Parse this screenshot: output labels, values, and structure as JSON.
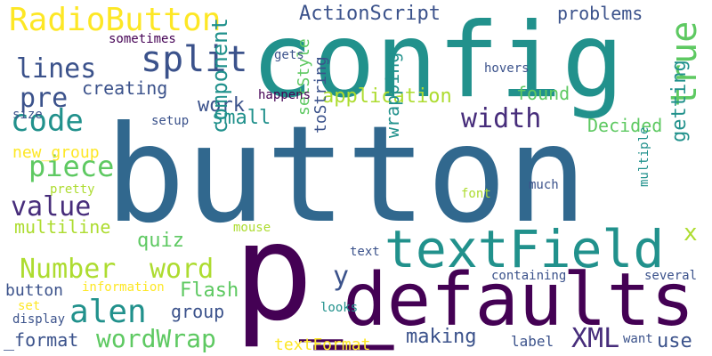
{
  "background": "#ffffff",
  "palette": {
    "dark_purple": "#440154",
    "indigo": "#472d7b",
    "blue": "#3b528b",
    "steel": "#31688e",
    "teal": "#21918c",
    "sea": "#1fa187",
    "green": "#5ec962",
    "lime": "#addc30",
    "yellow": "#fde725"
  },
  "words": [
    {
      "text": "button",
      "color": "#31688e"
    },
    {
      "text": "config",
      "color": "#21918c"
    },
    {
      "text": "_defaults",
      "color": "#440154"
    },
    {
      "text": "p_",
      "color": "#440154"
    },
    {
      "text": "textField",
      "color": "#21918c"
    },
    {
      "text": "RadioButton",
      "color": "#fde725"
    },
    {
      "text": "split",
      "color": "#3b528b"
    },
    {
      "text": "true",
      "color": "#5ec962"
    },
    {
      "text": "code",
      "color": "#21918c"
    },
    {
      "text": "piece",
      "color": "#5ec962"
    },
    {
      "text": "value",
      "color": "#472d7b"
    },
    {
      "text": "width",
      "color": "#472d7b"
    },
    {
      "text": "lines",
      "color": "#3b528b"
    },
    {
      "text": "pre",
      "color": "#3b528b"
    },
    {
      "text": "application",
      "color": "#addc30"
    },
    {
      "text": "ActionScript",
      "color": "#3b528b"
    },
    {
      "text": "problems",
      "color": "#3b528b"
    },
    {
      "text": "work",
      "color": "#3b528b"
    },
    {
      "text": "small",
      "color": "#21918c"
    },
    {
      "text": "found",
      "color": "#5ec962"
    },
    {
      "text": "Decided",
      "color": "#5ec962"
    },
    {
      "text": "getting",
      "color": "#21918c"
    },
    {
      "text": "component",
      "color": "#21918c"
    },
    {
      "text": "wrapping",
      "color": "#21918c"
    },
    {
      "text": "setStyle",
      "color": "#5ec962"
    },
    {
      "text": "toString",
      "color": "#3b528b"
    },
    {
      "text": "Number",
      "color": "#addc30"
    },
    {
      "text": "word",
      "color": "#addc30"
    },
    {
      "text": "alen",
      "color": "#21918c"
    },
    {
      "text": "wordWrap",
      "color": "#5ec962"
    },
    {
      "text": "Flash",
      "color": "#5ec962"
    },
    {
      "text": "group",
      "color": "#3b528b"
    },
    {
      "text": "making",
      "color": "#3b528b"
    },
    {
      "text": "XML",
      "color": "#472d7b"
    },
    {
      "text": "use",
      "color": "#3b528b"
    },
    {
      "text": "y",
      "color": "#3b528b"
    },
    {
      "text": "x",
      "color": "#addc30"
    },
    {
      "text": "quiz",
      "color": "#5ec962"
    },
    {
      "text": "multiline",
      "color": "#addc30"
    },
    {
      "text": "creating",
      "color": "#3b528b"
    },
    {
      "text": "gets",
      "color": "#3b528b"
    },
    {
      "text": "sometimes",
      "color": "#440154"
    },
    {
      "text": "hovers",
      "color": "#3b528b"
    },
    {
      "text": "happens",
      "color": "#440154"
    },
    {
      "text": "setup",
      "color": "#3b528b"
    },
    {
      "text": "size",
      "color": "#3b528b"
    },
    {
      "text": "new_group",
      "color": "#fde725"
    },
    {
      "text": "pretty",
      "color": "#addc30"
    },
    {
      "text": "font",
      "color": "#addc30"
    },
    {
      "text": "much",
      "color": "#3b528b"
    },
    {
      "text": "multiple",
      "color": "#21918c"
    },
    {
      "text": "mouse",
      "color": "#addc30"
    },
    {
      "text": "text",
      "color": "#3b528b"
    },
    {
      "text": "button",
      "color": "#3b528b"
    },
    {
      "text": "information",
      "color": "#fde725"
    },
    {
      "text": "containing",
      "color": "#3b528b"
    },
    {
      "text": "several",
      "color": "#3b528b"
    },
    {
      "text": "looks",
      "color": "#21918c"
    },
    {
      "text": "set",
      "color": "#fde725"
    },
    {
      "text": "display",
      "color": "#3b528b"
    },
    {
      "text": "_format",
      "color": "#3b528b"
    },
    {
      "text": "textFormat",
      "color": "#fde725"
    },
    {
      "text": "label",
      "color": "#3b528b"
    },
    {
      "text": "want",
      "color": "#3b528b"
    }
  ]
}
